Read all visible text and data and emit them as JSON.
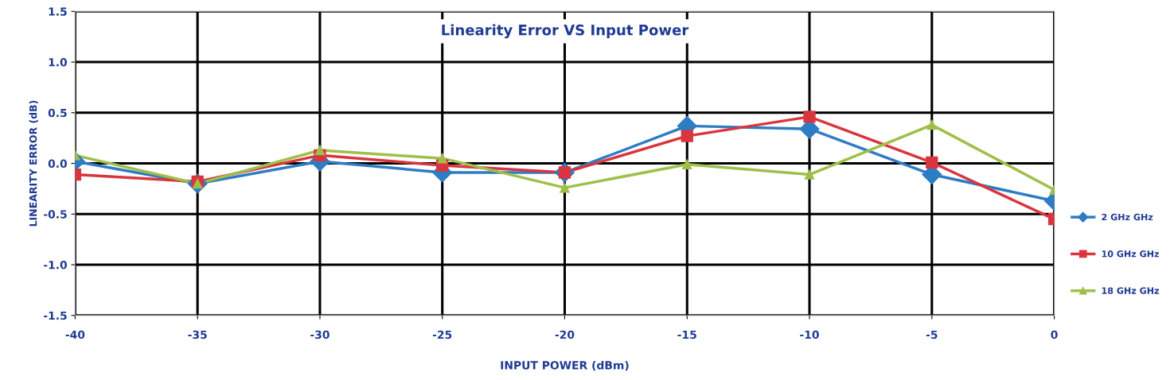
{
  "chart_data": {
    "type": "line",
    "title": "Linearity Error VS Input Power",
    "xlabel": "INPUT POWER (dBm)",
    "ylabel": "LINEARITY ERROR (dB)",
    "x": [
      -40,
      -35,
      -30,
      -25,
      -20,
      -15,
      -10,
      -5,
      0
    ],
    "series": [
      {
        "name": "2 GHz GHz",
        "color": "#2e7cc4",
        "marker": "diamond",
        "values": [
          0.02,
          -0.2,
          0.02,
          -0.09,
          -0.09,
          0.37,
          0.34,
          -0.11,
          -0.37
        ]
      },
      {
        "name": "10 GHz GHz",
        "color": "#d9353f",
        "marker": "square",
        "values": [
          -0.11,
          -0.18,
          0.08,
          -0.02,
          -0.09,
          0.27,
          0.46,
          0.01,
          -0.55
        ]
      },
      {
        "name": "18 GHz GHz",
        "color": "#9fbf4a",
        "marker": "triangle",
        "values": [
          0.08,
          -0.2,
          0.13,
          0.05,
          -0.24,
          -0.01,
          -0.11,
          0.38,
          -0.26
        ]
      }
    ],
    "xlim": [
      -40,
      0
    ],
    "xticks": [
      -40,
      -35,
      -30,
      -25,
      -20,
      -15,
      -10,
      -5,
      0
    ],
    "ylim": [
      -1.5,
      1.5
    ],
    "yticks": [
      {
        "value": -1.5,
        "label": "-1.5"
      },
      {
        "value": -1.0,
        "label": "-1.0"
      },
      {
        "value": -0.5,
        "label": "-0.5"
      },
      {
        "value": 0.0,
        "label": "0.0"
      },
      {
        "value": 0.5,
        "label": "0.5"
      },
      {
        "value": 1.0,
        "label": "1.0"
      },
      {
        "value": 1.5,
        "label": "1.5"
      }
    ],
    "grid": true,
    "legend": "right",
    "line_style": "solid"
  }
}
